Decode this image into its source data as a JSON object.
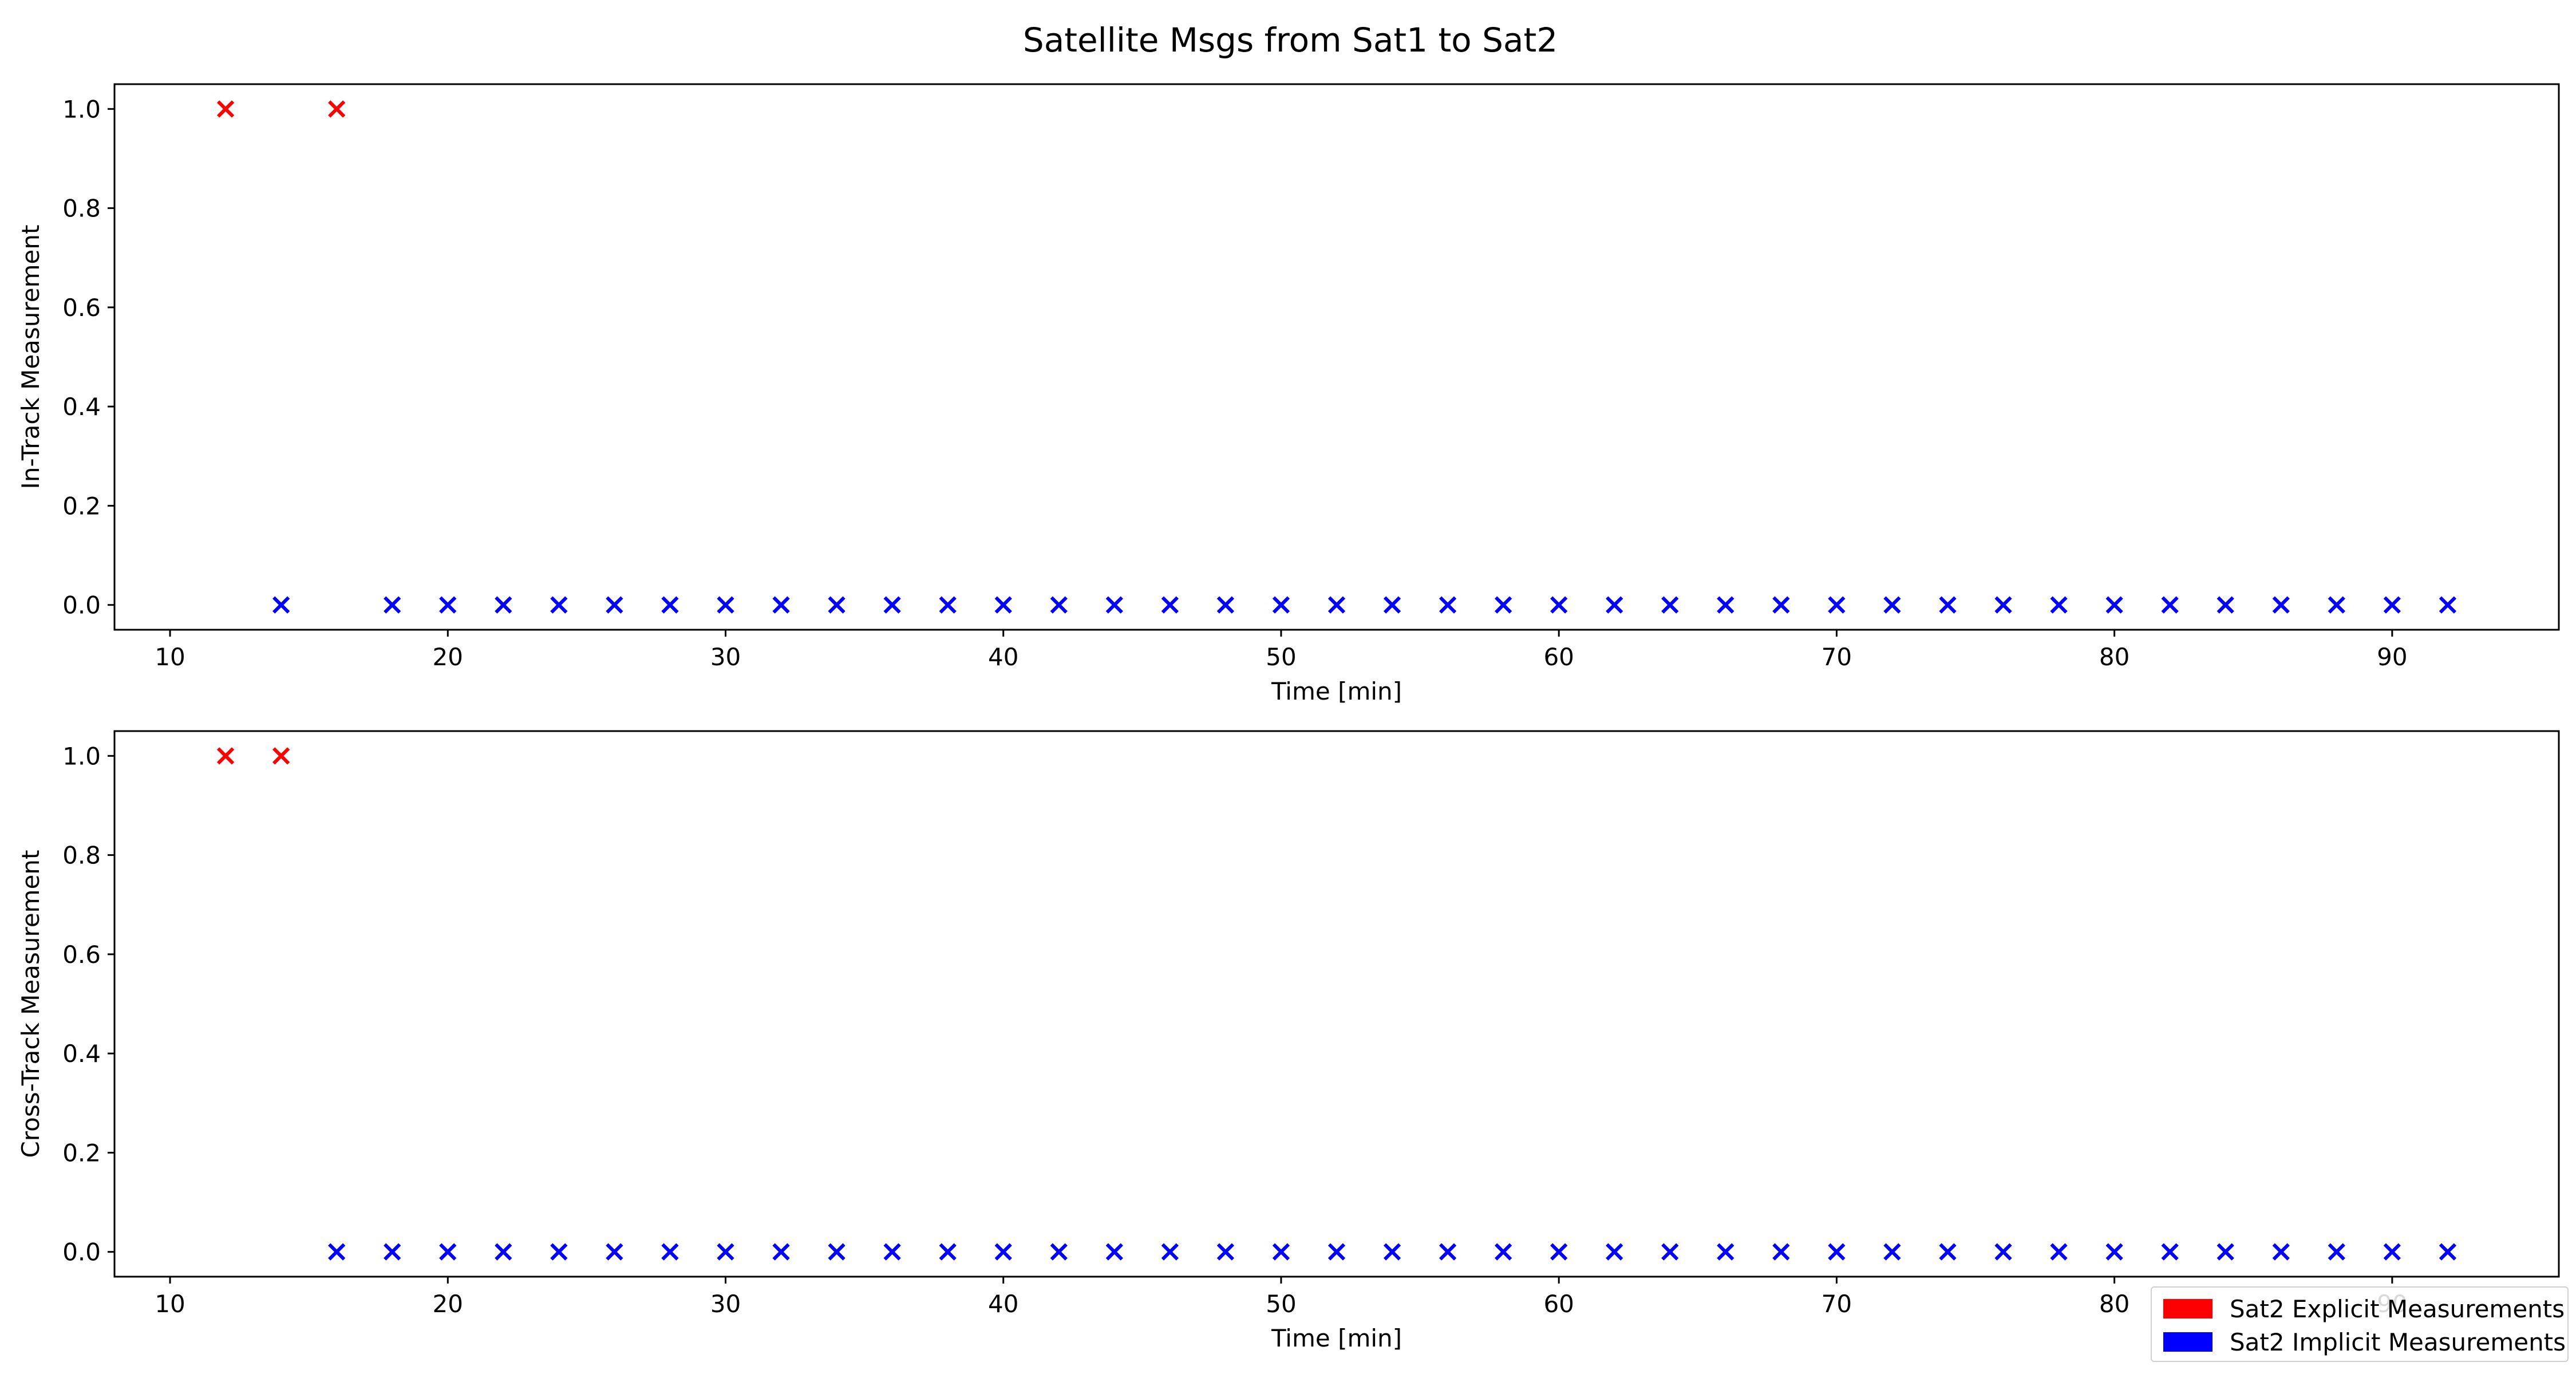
{
  "figure": {
    "title": "Satellite Msgs from Sat1 to Sat2",
    "colors": {
      "explicit": "#ff0000",
      "implicit": "#0000ff"
    }
  },
  "legend": {
    "items": [
      {
        "label": "Sat2 Explicit Measurements",
        "color": "#ff0000"
      },
      {
        "label": "Sat2 Implicit Measurements",
        "color": "#0000ff"
      }
    ]
  },
  "chart_data": [
    {
      "type": "scatter",
      "title": "Satellite Msgs from Sat1 to Sat2",
      "xlabel": "Time [min]",
      "ylabel": "In-Track Measurement",
      "xlim": [
        8,
        96
      ],
      "ylim": [
        -0.05,
        1.05
      ],
      "xticks": [
        10,
        20,
        30,
        40,
        50,
        60,
        70,
        80,
        90
      ],
      "yticks": [
        0.0,
        0.2,
        0.4,
        0.6,
        0.8,
        1.0
      ],
      "ytick_labels": [
        "0.0",
        "0.2",
        "0.4",
        "0.6",
        "0.8",
        "1.0"
      ],
      "marker": "x",
      "grid": false,
      "series": [
        {
          "name": "Sat2 Explicit Measurements",
          "color": "#ff0000",
          "x": [
            12,
            16
          ],
          "y": [
            1,
            1
          ]
        },
        {
          "name": "Sat2 Implicit Measurements",
          "color": "#0000ff",
          "x": [
            14,
            18,
            20,
            22,
            24,
            26,
            28,
            30,
            32,
            34,
            36,
            38,
            40,
            42,
            44,
            46,
            48,
            50,
            52,
            54,
            56,
            58,
            60,
            62,
            64,
            66,
            68,
            70,
            72,
            74,
            76,
            78,
            80,
            82,
            84,
            86,
            88,
            90,
            92
          ],
          "y": [
            0,
            0,
            0,
            0,
            0,
            0,
            0,
            0,
            0,
            0,
            0,
            0,
            0,
            0,
            0,
            0,
            0,
            0,
            0,
            0,
            0,
            0,
            0,
            0,
            0,
            0,
            0,
            0,
            0,
            0,
            0,
            0,
            0,
            0,
            0,
            0,
            0,
            0,
            0
          ]
        }
      ]
    },
    {
      "type": "scatter",
      "xlabel": "Time [min]",
      "ylabel": "Cross-Track Measurement",
      "xlim": [
        8,
        96
      ],
      "ylim": [
        -0.05,
        1.05
      ],
      "xticks": [
        10,
        20,
        30,
        40,
        50,
        60,
        70,
        80,
        90
      ],
      "yticks": [
        0.0,
        0.2,
        0.4,
        0.6,
        0.8,
        1.0
      ],
      "ytick_labels": [
        "0.0",
        "0.2",
        "0.4",
        "0.6",
        "0.8",
        "1.0"
      ],
      "marker": "x",
      "grid": false,
      "legend_position": "lower-right",
      "series": [
        {
          "name": "Sat2 Explicit Measurements",
          "color": "#ff0000",
          "x": [
            12,
            14
          ],
          "y": [
            1,
            1
          ]
        },
        {
          "name": "Sat2 Implicit Measurements",
          "color": "#0000ff",
          "x": [
            16,
            18,
            20,
            22,
            24,
            26,
            28,
            30,
            32,
            34,
            36,
            38,
            40,
            42,
            44,
            46,
            48,
            50,
            52,
            54,
            56,
            58,
            60,
            62,
            64,
            66,
            68,
            70,
            72,
            74,
            76,
            78,
            80,
            82,
            84,
            86,
            88,
            90,
            92
          ],
          "y": [
            0,
            0,
            0,
            0,
            0,
            0,
            0,
            0,
            0,
            0,
            0,
            0,
            0,
            0,
            0,
            0,
            0,
            0,
            0,
            0,
            0,
            0,
            0,
            0,
            0,
            0,
            0,
            0,
            0,
            0,
            0,
            0,
            0,
            0,
            0,
            0,
            0,
            0,
            0
          ]
        }
      ]
    }
  ]
}
